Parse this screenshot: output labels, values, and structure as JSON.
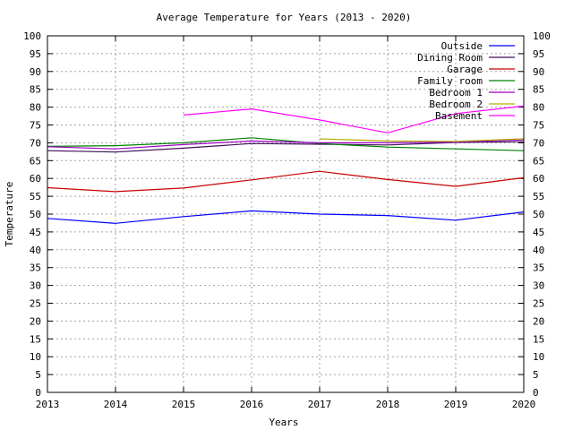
{
  "chart_data": {
    "type": "line",
    "title": "Average Temperature for Years (2013 - 2020)",
    "xlabel": "Years",
    "ylabel": "Temperature",
    "xlim": [
      2013,
      2020
    ],
    "ylim": [
      0,
      100
    ],
    "x_ticks": [
      "2013",
      "2014",
      "2015",
      "2016",
      "2017",
      "2018",
      "2019",
      "2020"
    ],
    "y_ticks": [
      "0",
      "5",
      "10",
      "15",
      "20",
      "25",
      "30",
      "35",
      "40",
      "45",
      "50",
      "55",
      "60",
      "65",
      "70",
      "75",
      "80",
      "85",
      "90",
      "95",
      "100"
    ],
    "grid": true,
    "legend_position": "top-right",
    "series": [
      {
        "name": "Outside",
        "color": "#0000ff",
        "x": [
          2013,
          2014,
          2015,
          2016,
          2017,
          2018,
          2019,
          2020
        ],
        "values": [
          48.8,
          47.4,
          49.3,
          50.9,
          50.0,
          49.6,
          48.3,
          50.6
        ]
      },
      {
        "name": "Dining Room",
        "color": "#3f0f59",
        "x": [
          2013,
          2014,
          2015,
          2016,
          2017,
          2018,
          2019,
          2020
        ],
        "values": [
          67.8,
          67.4,
          68.5,
          69.8,
          69.6,
          69.4,
          70.1,
          70.3
        ]
      },
      {
        "name": "Garage",
        "color": "#c80000",
        "x": [
          2013,
          2014,
          2015,
          2016,
          2017,
          2018,
          2019,
          2020
        ],
        "values": [
          57.4,
          56.3,
          57.3,
          59.6,
          62.0,
          59.7,
          57.8,
          60.2
        ]
      },
      {
        "name": "Family room",
        "color": "#008000",
        "x": [
          2013,
          2014,
          2015,
          2016,
          2017,
          2018,
          2019,
          2020
        ],
        "values": [
          69.0,
          69.2,
          70.0,
          71.4,
          69.8,
          68.8,
          68.3,
          67.8
        ]
      },
      {
        "name": "Bedroom 1",
        "color": "#a000c8",
        "x": [
          2013,
          2014,
          2015,
          2016,
          2017,
          2018,
          2019,
          2020
        ],
        "values": [
          68.9,
          68.3,
          69.5,
          70.5,
          70.0,
          70.0,
          70.2,
          70.8
        ]
      },
      {
        "name": "Bedroom 2",
        "color": "#b0b000",
        "x": [
          2017,
          2018,
          2019,
          2020
        ],
        "values": [
          71.1,
          70.5,
          70.4,
          71.1
        ]
      },
      {
        "name": "Basement",
        "color": "#ff00ff",
        "x": [
          2015,
          2016,
          2017,
          2018,
          2019,
          2020
        ],
        "values": [
          77.8,
          79.5,
          76.4,
          72.8,
          78.2,
          80.3
        ]
      }
    ]
  }
}
